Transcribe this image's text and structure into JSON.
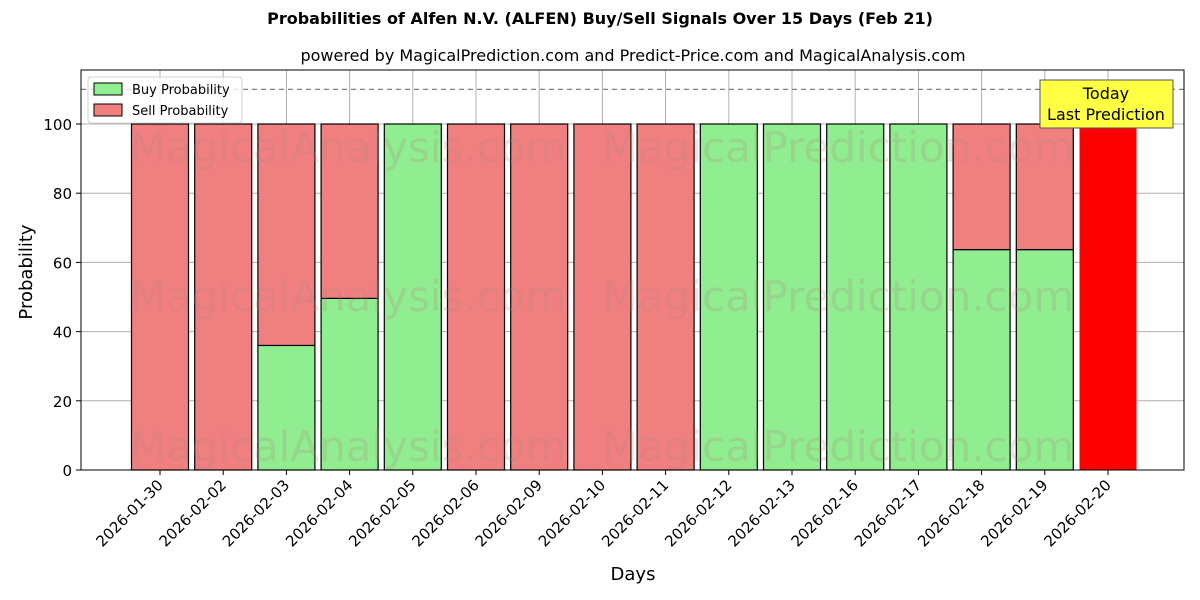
{
  "header": {
    "title": "Probabilities of Alfen N.V. (ALFEN) Buy/Sell Signals Over 15 Days (Feb 21)",
    "subtitle": "powered by MagicalPrediction.com and Predict-Price.com and MagicalAnalysis.com"
  },
  "legend": {
    "buy_label": "Buy Probability",
    "sell_label": "Sell Probability"
  },
  "annotation": {
    "line1": "Today",
    "line2": "Last Prediction"
  },
  "watermarks": [
    "MagicalAnalysis.com",
    "MagicalPrediction.com"
  ],
  "colors": {
    "buy": "#90ee90",
    "sell": "#f08080",
    "today_sell": "#ff0000",
    "annotation_bg": "#ffff44",
    "grid": "#b0b0b0",
    "ref_line": "#808080"
  },
  "chart_data": {
    "type": "bar",
    "stacked": true,
    "title": "Probabilities of Alfen N.V. (ALFEN) Buy/Sell Signals Over 15 Days (Feb 21)",
    "subtitle": "powered by MagicalPrediction.com and Predict-Price.com and MagicalAnalysis.com",
    "xlabel": "Days",
    "ylabel": "Probability",
    "ylim": [
      0,
      115
    ],
    "yticks": [
      0,
      20,
      40,
      60,
      80,
      100
    ],
    "reference_line": 110,
    "grid": true,
    "legend_position": "upper left",
    "categories": [
      "2026-01-30",
      "2026-02-02",
      "2026-02-03",
      "2026-02-04",
      "2026-02-05",
      "2026-02-06",
      "2026-02-09",
      "2026-02-10",
      "2026-02-11",
      "2026-02-12",
      "2026-02-13",
      "2026-02-16",
      "2026-02-17",
      "2026-02-18",
      "2026-02-19",
      "2026-02-20"
    ],
    "series": [
      {
        "name": "Buy Probability",
        "values": [
          0,
          0,
          36,
          49.6,
          100,
          0,
          0,
          0,
          0,
          100,
          100,
          100,
          100,
          63.7,
          63.7,
          0
        ]
      },
      {
        "name": "Sell Probability",
        "values": [
          100,
          100,
          64,
          50.4,
          0,
          100,
          100,
          100,
          100,
          0,
          0,
          0,
          0,
          36.3,
          36.3,
          100
        ]
      }
    ],
    "highlight": {
      "category": "2026-02-20",
      "label": "Today\nLast Prediction",
      "color": "#ff0000"
    }
  }
}
